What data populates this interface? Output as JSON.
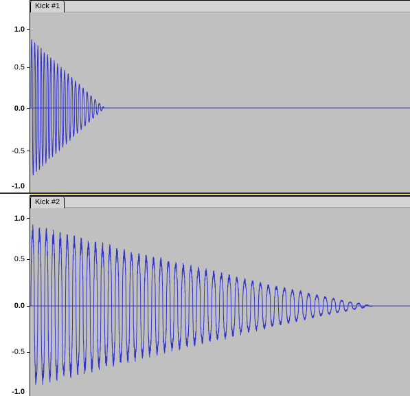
{
  "tracks": [
    {
      "name": "Kick #1",
      "scale_labels": [
        "1.0",
        "0.5",
        "0.0",
        "-0.5",
        "-1.0"
      ],
      "waveform": {
        "color": "#3232c8",
        "peak_amplitude": 0.82,
        "decays_to_zero": true,
        "cycles": 24
      }
    },
    {
      "name": "Kick #2",
      "scale_labels": [
        "1.0",
        "0.5",
        "0.0",
        "-0.5",
        "-1.0"
      ],
      "waveform": {
        "color": "#3232c8",
        "peak_amplitude": 0.85,
        "decays_to_zero": true,
        "cycles": 50
      }
    }
  ],
  "colors": {
    "clip_background": "#c0c0c0",
    "waveform": "#3232c8",
    "zero_line": "#3232c8",
    "track_separator_accent": "#e8d86a"
  }
}
